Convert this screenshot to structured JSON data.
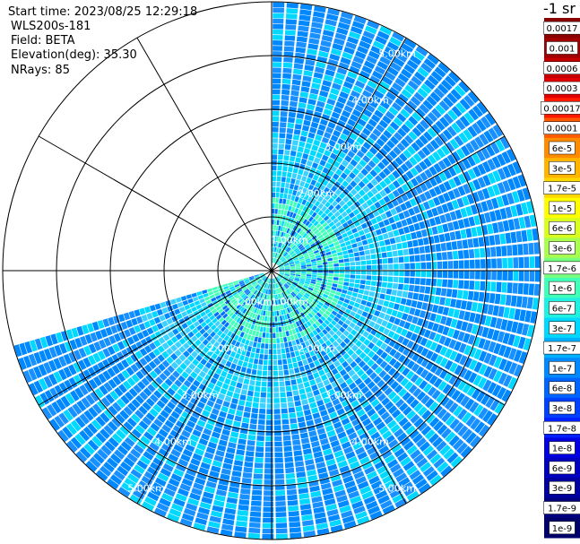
{
  "header": {
    "start_time": "Start time: 2023/08/25 12:29:18",
    "instrument": "WLS200s-181",
    "field": "Field: BETA",
    "elevation": "Elevation(deg): 35.30",
    "nrays": "NRays: 85"
  },
  "colorbar": {
    "unit_label": "-1 sr",
    "ticks": [
      {
        "label": "0.0017",
        "color": "#8b0000"
      },
      {
        "label": "0.001",
        "color": "#a00000"
      },
      {
        "label": "0.0006",
        "color": "#c40000"
      },
      {
        "label": "0.0003",
        "color": "#e20000"
      },
      {
        "label": "0.00017",
        "color": "#ff1a00"
      },
      {
        "label": "0.0001",
        "color": "#ff5a00"
      },
      {
        "label": "6e-5",
        "color": "#ff8c00"
      },
      {
        "label": "3e-5",
        "color": "#ffb400"
      },
      {
        "label": "1.7e-5",
        "color": "#ffd800"
      },
      {
        "label": "1e-5",
        "color": "#ffff00"
      },
      {
        "label": "6e-6",
        "color": "#d8ff20"
      },
      {
        "label": "3e-6",
        "color": "#a8ff50"
      },
      {
        "label": "1.7e-6",
        "color": "#78ff80"
      },
      {
        "label": "1e-6",
        "color": "#40ffb8"
      },
      {
        "label": "6e-7",
        "color": "#20f0e0"
      },
      {
        "label": "3e-7",
        "color": "#00d8ff"
      },
      {
        "label": "1.7e-7",
        "color": "#00b0ff"
      },
      {
        "label": "1e-7",
        "color": "#0088ff"
      },
      {
        "label": "6e-8",
        "color": "#0064ff"
      },
      {
        "label": "3e-8",
        "color": "#0040ff"
      },
      {
        "label": "1.7e-8",
        "color": "#0020ff"
      },
      {
        "label": "1e-8",
        "color": "#0000e0"
      },
      {
        "label": "6e-9",
        "color": "#0000c0"
      },
      {
        "label": "3e-9",
        "color": "#0000a0"
      },
      {
        "label": "1.7e-9",
        "color": "#000080"
      },
      {
        "label": "1e-9",
        "color": "#00006a"
      }
    ]
  },
  "chart_data": {
    "type": "polar-ppi",
    "range_rings_km": [
      1,
      2,
      3,
      4,
      5
    ],
    "ring_labels": [
      "1.00km",
      "2.00km",
      "3.00km",
      "4.00km",
      "5.00km"
    ],
    "max_range_km": 5,
    "spoke_angles_deg": [
      0,
      30,
      60,
      90,
      120,
      150,
      180,
      210,
      240,
      270,
      300,
      330
    ],
    "scan_azimuth_deg": [
      0,
      254
    ],
    "ring_label_bearings_deg": [
      30,
      150,
      210
    ],
    "inner_range_km": 0.15,
    "range_gates": 48,
    "nrays": 85,
    "value_range": [
      "1e-9",
      "0.0017"
    ],
    "dominant_values": [
      "1e-7",
      "3e-7",
      "1e-6"
    ]
  }
}
